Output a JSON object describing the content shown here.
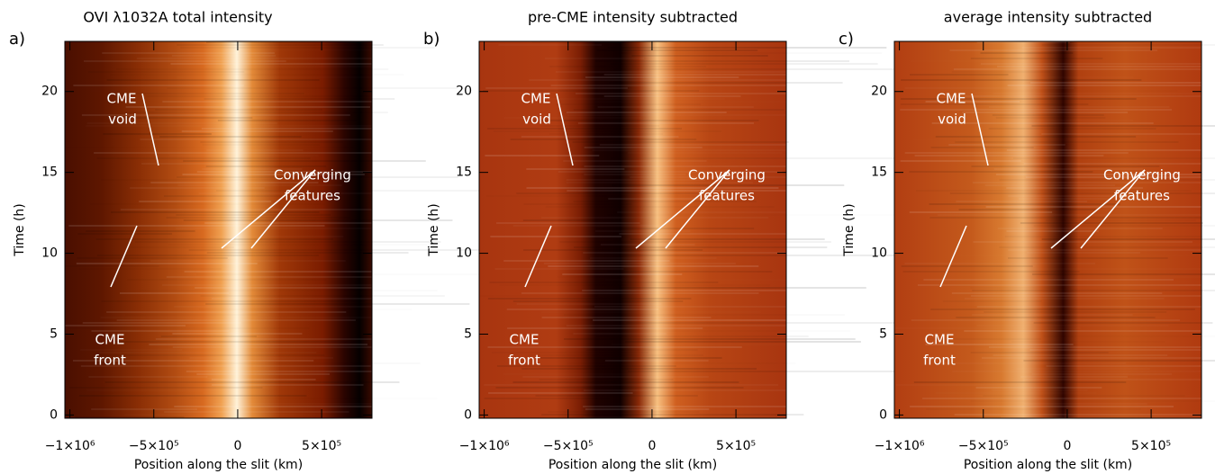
{
  "chart_data": [
    {
      "type": "heatmap",
      "panel_label": "a)",
      "title": "OVI λ1032A total intensity",
      "xlabel": "Position along the slit (km)",
      "ylabel": "Time (h)",
      "xlim": [
        -1030000,
        800000
      ],
      "ylim": [
        -0.2,
        23.1
      ],
      "xticks": [
        {
          "value": -1000000,
          "label": "−1×10⁶"
        },
        {
          "value": -500000,
          "label": "−5×10⁵"
        },
        0,
        {
          "value": 500000,
          "label": "5×10⁵"
        }
      ],
      "yticks": [
        0,
        5,
        10,
        15,
        20
      ],
      "annotations": [
        [
          "CME",
          "void"
        ],
        [
          "CME",
          "front"
        ],
        [
          "Converging",
          "features"
        ]
      ]
    },
    {
      "type": "heatmap",
      "panel_label": "b)",
      "title": "pre-CME intensity subtracted",
      "xlabel": "Position along the slit (km)",
      "ylabel": "Time (h)",
      "xlim": [
        -1030000,
        800000
      ],
      "ylim": [
        -0.2,
        23.1
      ],
      "xticks": [
        {
          "value": -1000000,
          "label": "−1×10⁶"
        },
        {
          "value": -500000,
          "label": "−5×10⁵"
        },
        0,
        {
          "value": 500000,
          "label": "5×10⁵"
        }
      ],
      "yticks": [
        0,
        5,
        10,
        15,
        20
      ],
      "annotations": [
        [
          "CME",
          "void"
        ],
        [
          "CME",
          "front"
        ],
        [
          "Converging",
          "features"
        ]
      ]
    },
    {
      "type": "heatmap",
      "panel_label": "c)",
      "title": "average intensity subtracted",
      "xlabel": "Position along the slit (km)",
      "ylabel": "Time (h)",
      "xlim": [
        -1030000,
        800000
      ],
      "ylim": [
        -0.2,
        23.1
      ],
      "xticks": [
        {
          "value": -1000000,
          "label": "−1×10⁶"
        },
        {
          "value": -500000,
          "label": "−5×10⁵"
        },
        0,
        {
          "value": 500000,
          "label": "5×10⁵"
        }
      ],
      "yticks": [
        0,
        5,
        10,
        15,
        20
      ],
      "annotations": [
        [
          "CME",
          "void"
        ],
        [
          "CME",
          "front"
        ],
        [
          "Converging",
          "features"
        ]
      ]
    }
  ]
}
